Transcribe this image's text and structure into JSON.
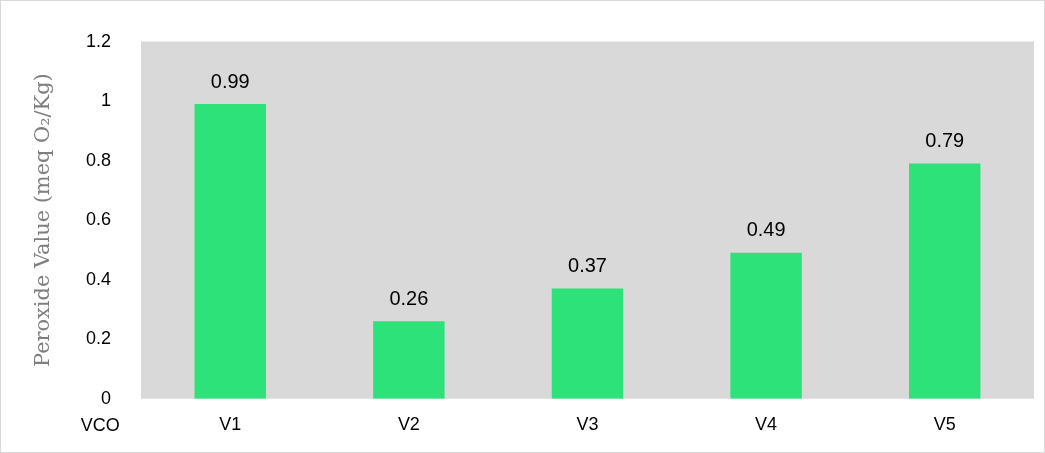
{
  "chart_data": {
    "type": "bar",
    "ylabel": "Peroxide Value (meq O₂/Kg)",
    "xlabel": "VCO",
    "categories": [
      "V1",
      "V2",
      "V3",
      "V4",
      "V5"
    ],
    "values": [
      0.99,
      0.26,
      0.37,
      0.49,
      0.79
    ],
    "color": "#2ee27a",
    "ylim": [
      0,
      1.2
    ],
    "yticks": [
      0,
      0.2,
      0.4,
      0.6,
      0.8,
      1,
      1.2
    ],
    "grid": false,
    "legend": false,
    "data_labels": true
  }
}
